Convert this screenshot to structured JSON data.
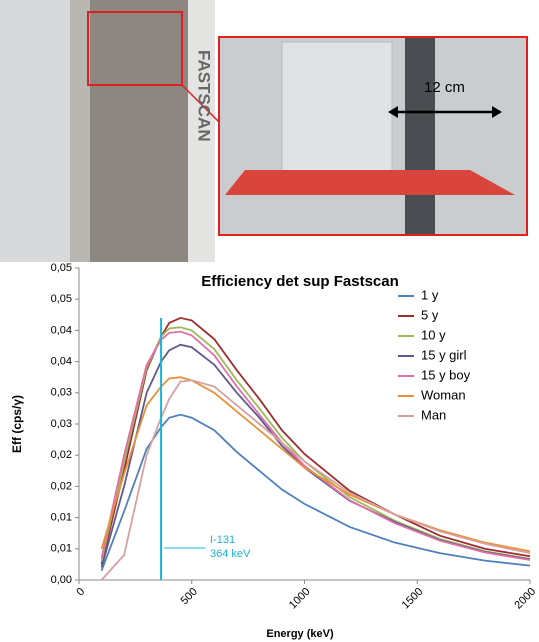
{
  "photo": {
    "brand": "FASTSCAN",
    "label": "12 cm"
  },
  "chart_data": {
    "type": "line",
    "title": "Efficiency det sup Fastscan",
    "x_label": "Energy (keV)",
    "y_label": "Eff (cps/γ)",
    "x": [
      100,
      200,
      300,
      364,
      400,
      450,
      500,
      600,
      700,
      800,
      900,
      1000,
      1200,
      1400,
      1600,
      1800,
      2000
    ],
    "xlim": [
      0,
      2000
    ],
    "xticks": [
      0,
      500,
      1000,
      1500,
      2000
    ],
    "ylim": [
      0,
      0.05
    ],
    "yticks": [
      {
        "value": 0,
        "label": "0,00"
      },
      {
        "value": 0.005,
        "label": "0,01"
      },
      {
        "value": 0.01,
        "label": "0,01"
      },
      {
        "value": 0.015,
        "label": "0,02"
      },
      {
        "value": 0.02,
        "label": "0,02"
      },
      {
        "value": 0.025,
        "label": "0,03"
      },
      {
        "value": 0.03,
        "label": "0,03"
      },
      {
        "value": 0.035,
        "label": "0,04"
      },
      {
        "value": 0.04,
        "label": "0,04"
      },
      {
        "value": 0.045,
        "label": "0,05"
      },
      {
        "value": 0.05,
        "label": "0,05"
      }
    ],
    "legend": "upper right",
    "series": [
      {
        "name": "1 y",
        "color": "#4f81bd",
        "values": [
          0.0015,
          0.011,
          0.021,
          0.0245,
          0.026,
          0.0265,
          0.026,
          0.024,
          0.0205,
          0.0175,
          0.0145,
          0.0122,
          0.0085,
          0.006,
          0.0043,
          0.0031,
          0.0023
        ]
      },
      {
        "name": "5 y",
        "color": "#9b2d30",
        "values": [
          0.0025,
          0.0176,
          0.0336,
          0.039,
          0.0412,
          0.042,
          0.0416,
          0.0386,
          0.0336,
          0.029,
          0.024,
          0.0202,
          0.0143,
          0.0105,
          0.0071,
          0.005,
          0.0038
        ]
      },
      {
        "name": "10 y",
        "color": "#9bbb59",
        "values": [
          0.003,
          0.019,
          0.034,
          0.039,
          0.0403,
          0.0405,
          0.04,
          0.037,
          0.032,
          0.0275,
          0.0228,
          0.019,
          0.0133,
          0.0095,
          0.0066,
          0.0046,
          0.0034
        ]
      },
      {
        "name": "15 y girl",
        "color": "#5e5a8e",
        "values": [
          0.002,
          0.015,
          0.03,
          0.035,
          0.0368,
          0.0377,
          0.0373,
          0.0345,
          0.03,
          0.026,
          0.0215,
          0.018,
          0.0127,
          0.0093,
          0.0064,
          0.0045,
          0.0033
        ]
      },
      {
        "name": "15 y boy",
        "color": "#e36fa8",
        "values": [
          0.0035,
          0.02,
          0.0345,
          0.0385,
          0.0396,
          0.0398,
          0.0392,
          0.036,
          0.031,
          0.0265,
          0.022,
          0.0183,
          0.0128,
          0.0091,
          0.0063,
          0.0044,
          0.0032
        ]
      },
      {
        "name": "Woman",
        "color": "#e8923a",
        "values": [
          0.005,
          0.017,
          0.028,
          0.031,
          0.0323,
          0.0325,
          0.032,
          0.03,
          0.027,
          0.024,
          0.021,
          0.018,
          0.0137,
          0.0105,
          0.008,
          0.006,
          0.0046
        ]
      },
      {
        "name": "Man",
        "color": "#d9a0a0",
        "values": [
          0,
          0.004,
          0.02,
          0.026,
          0.029,
          0.0318,
          0.032,
          0.031,
          0.028,
          0.025,
          0.022,
          0.019,
          0.014,
          0.0105,
          0.0078,
          0.0058,
          0.0043
        ]
      }
    ],
    "annotation": {
      "lines": [
        "I-131",
        "364 keV"
      ],
      "x": 364,
      "color": "#19b4d8"
    }
  }
}
